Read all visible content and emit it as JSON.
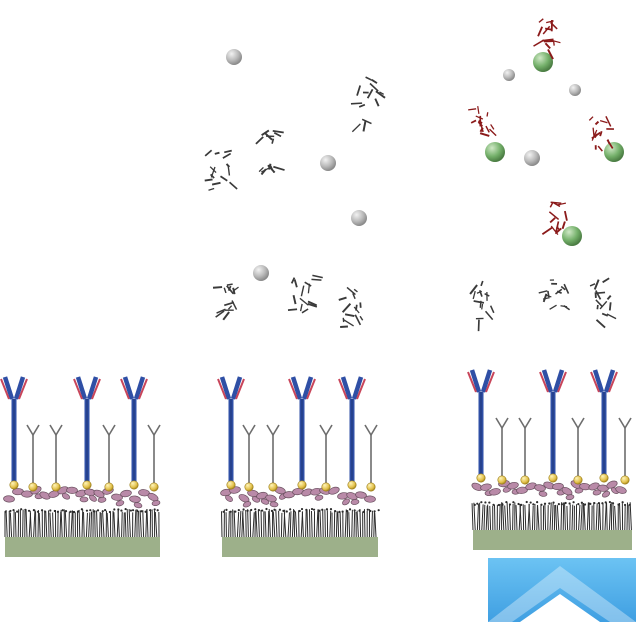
{
  "figure": {
    "panels": [
      {
        "id": "panel-1",
        "label": "",
        "bound_antibodies": 3,
        "has_analyte": false,
        "has_labeled_probe": false,
        "has_light_prism": false
      },
      {
        "id": "panel-2",
        "label": "",
        "bound_antibodies": 3,
        "has_analyte": true,
        "has_labeled_probe": false,
        "has_light_prism": false
      },
      {
        "id": "panel-3",
        "label": "",
        "bound_antibodies": 3,
        "has_analyte": true,
        "has_labeled_probe": true,
        "has_light_prism": true
      }
    ]
  },
  "colors": {
    "substrate": "#9db08a",
    "brush": "#2b2b2b",
    "linker": "#b98aa8",
    "linker_dark": "#6b5160",
    "gold_bead": "#e2c04a",
    "small_antibody": "#6d6d6d",
    "antibody_blue": "#2f4fa5",
    "antibody_red": "#c8455a",
    "sphere": "#b9b9b9",
    "green_sphere": "#74b06a",
    "red_fiber": "#8b1a1a",
    "prism": "#55b6ee"
  }
}
